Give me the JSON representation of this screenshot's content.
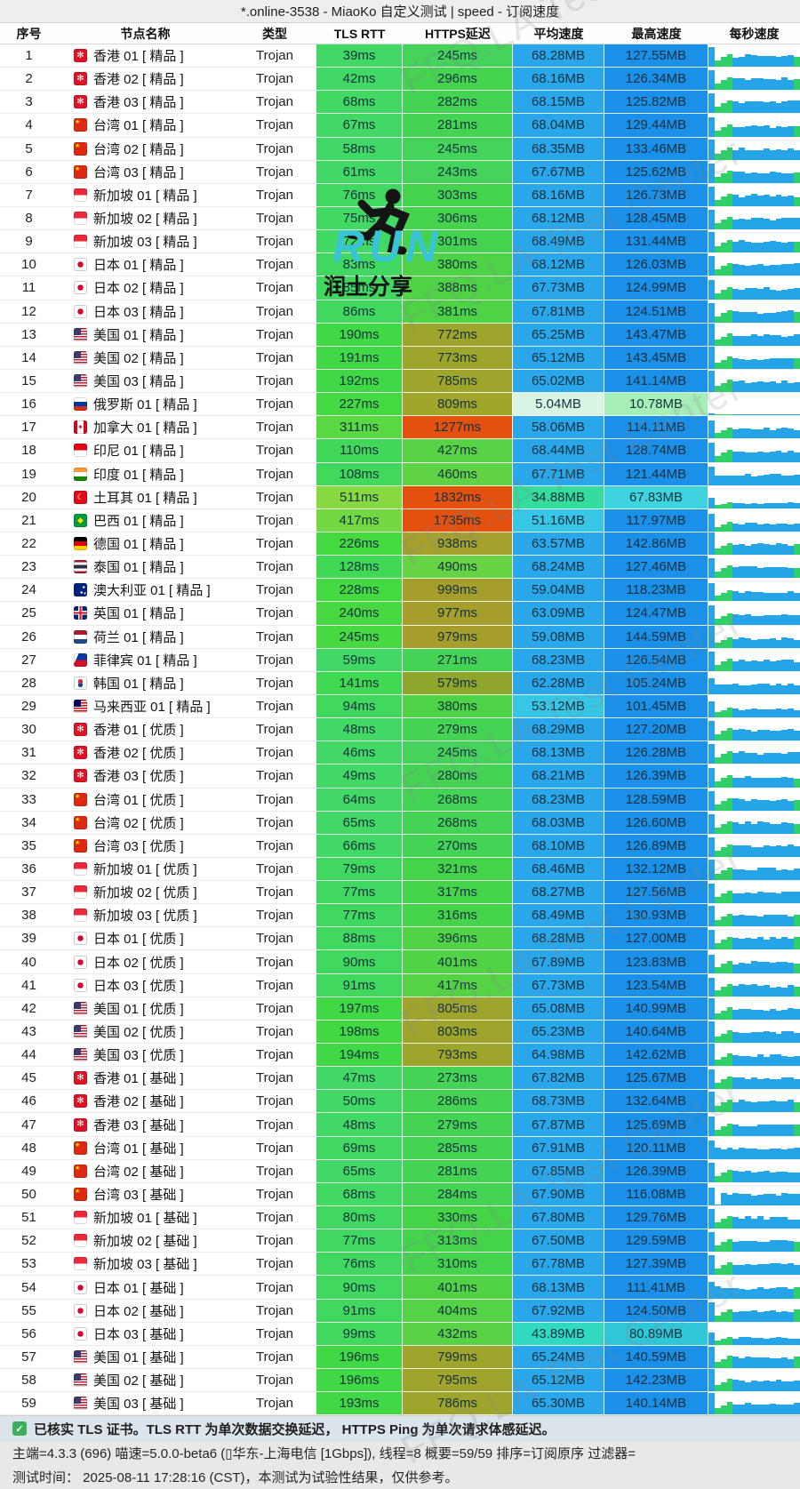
{
  "title": "*.online-3538 - MiaoKo 自定义测试 | speed - 订阅速度",
  "columns": [
    "序号",
    "节点名称",
    "类型",
    "TLS RTT",
    "HTTPS延迟",
    "平均速度",
    "最高速度",
    "每秒速度"
  ],
  "watermark": {
    "diagonal": "FFQ.LA Test Center",
    "run_text": "RUN",
    "run_sub": "润土分享"
  },
  "footer": {
    "line1": "已核实 TLS 证书。TLS RTT 为单次数据交换延迟， HTTPS Ping 为单次请求体感延迟。",
    "line2": "主端=4.3.3 (696) 喵速=5.0.0-beta6 (▯华东-上海电信 [1Gbps]), 线程=8 概要=59/59 排序=订阅原序 过滤器=",
    "line3": "测试时间： 2025-08-11 17:28:16 (CST)，本测试为试验性结果，仅供参考。"
  },
  "colors": {
    "latency_red": "#e4500e",
    "speed_avg_blue": "#2aa7ea",
    "speed_max_blue": "#1b90e8",
    "speed_cyan": "#38c6e6",
    "speed_cyan2": "#2fc7d8",
    "speed_cyan3": "#3fd3e0",
    "speed_teal": "#31d9c0",
    "speed_green": "#34dd9b",
    "speed_pale_mint": "#d8f4e3",
    "speed_pale_green": "#a6efb7",
    "bar_blue": "#25a5e8",
    "bar_green": "#2fd069",
    "check_green": "#3fae5c",
    "run_teal": "#38c3d6"
  },
  "rows": [
    {
      "num": 1,
      "flag": "hk",
      "name": "香港 01 [ 精品 ]",
      "type": "Trojan",
      "tls": "39ms",
      "https": "245ms",
      "avg": "68.28MB",
      "max": "127.55MB"
    },
    {
      "num": 2,
      "flag": "hk",
      "name": "香港 02 [ 精品 ]",
      "type": "Trojan",
      "tls": "42ms",
      "https": "296ms",
      "avg": "68.16MB",
      "max": "126.34MB"
    },
    {
      "num": 3,
      "flag": "hk",
      "name": "香港 03 [ 精品 ]",
      "type": "Trojan",
      "tls": "68ms",
      "https": "282ms",
      "avg": "68.15MB",
      "max": "125.82MB"
    },
    {
      "num": 4,
      "flag": "tw",
      "name": "台湾 01 [ 精品 ]",
      "type": "Trojan",
      "tls": "67ms",
      "https": "281ms",
      "avg": "68.04MB",
      "max": "129.44MB"
    },
    {
      "num": 5,
      "flag": "tw",
      "name": "台湾 02 [ 精品 ]",
      "type": "Trojan",
      "tls": "58ms",
      "https": "245ms",
      "avg": "68.35MB",
      "max": "133.46MB"
    },
    {
      "num": 6,
      "flag": "tw",
      "name": "台湾 03 [ 精品 ]",
      "type": "Trojan",
      "tls": "61ms",
      "https": "243ms",
      "avg": "67.67MB",
      "max": "125.62MB"
    },
    {
      "num": 7,
      "flag": "sg",
      "name": "新加坡 01 [ 精品 ]",
      "type": "Trojan",
      "tls": "76ms",
      "https": "303ms",
      "avg": "68.16MB",
      "max": "126.73MB"
    },
    {
      "num": 8,
      "flag": "sg",
      "name": "新加坡 02 [ 精品 ]",
      "type": "Trojan",
      "tls": "75ms",
      "https": "306ms",
      "avg": "68.12MB",
      "max": "128.45MB"
    },
    {
      "num": 9,
      "flag": "sg",
      "name": "新加坡 03 [ 精品 ]",
      "type": "Trojan",
      "tls": "72ms",
      "https": "301ms",
      "avg": "68.49MB",
      "max": "131.44MB"
    },
    {
      "num": 10,
      "flag": "jp",
      "name": "日本 01 [ 精品 ]",
      "type": "Trojan",
      "tls": "83ms",
      "https": "380ms",
      "avg": "68.12MB",
      "max": "126.03MB"
    },
    {
      "num": 11,
      "flag": "jp",
      "name": "日本 02 [ 精品 ]",
      "type": "Trojan",
      "tls": "85ms",
      "https": "388ms",
      "avg": "67.73MB",
      "max": "124.99MB"
    },
    {
      "num": 12,
      "flag": "jp",
      "name": "日本 03 [ 精品 ]",
      "type": "Trojan",
      "tls": "86ms",
      "https": "381ms",
      "avg": "67.81MB",
      "max": "124.51MB"
    },
    {
      "num": 13,
      "flag": "us",
      "name": "美国 01 [ 精品 ]",
      "type": "Trojan",
      "tls": "190ms",
      "https": "772ms",
      "avg": "65.25MB",
      "max": "143.47MB"
    },
    {
      "num": 14,
      "flag": "us",
      "name": "美国 02 [ 精品 ]",
      "type": "Trojan",
      "tls": "191ms",
      "https": "773ms",
      "avg": "65.12MB",
      "max": "143.45MB"
    },
    {
      "num": 15,
      "flag": "us",
      "name": "美国 03 [ 精品 ]",
      "type": "Trojan",
      "tls": "192ms",
      "https": "785ms",
      "avg": "65.02MB",
      "max": "141.14MB"
    },
    {
      "num": 16,
      "flag": "ru",
      "name": "俄罗斯 01 [ 精品 ]",
      "type": "Trojan",
      "tls": "227ms",
      "https": "809ms",
      "avg": "5.04MB",
      "max": "10.78MB"
    },
    {
      "num": 17,
      "flag": "ca",
      "name": "加拿大 01 [ 精品 ]",
      "type": "Trojan",
      "tls": "311ms",
      "https": "1277ms",
      "avg": "58.06MB",
      "max": "114.11MB"
    },
    {
      "num": 18,
      "flag": "id",
      "name": "印尼 01 [ 精品 ]",
      "type": "Trojan",
      "tls": "110ms",
      "https": "427ms",
      "avg": "68.44MB",
      "max": "128.74MB"
    },
    {
      "num": 19,
      "flag": "in",
      "name": "印度 01 [ 精品 ]",
      "type": "Trojan",
      "tls": "108ms",
      "https": "460ms",
      "avg": "67.71MB",
      "max": "121.44MB"
    },
    {
      "num": 20,
      "flag": "tr",
      "name": "土耳其 01 [ 精品 ]",
      "type": "Trojan",
      "tls": "511ms",
      "https": "1832ms",
      "avg": "34.88MB",
      "max": "67.83MB"
    },
    {
      "num": 21,
      "flag": "br",
      "name": "巴西 01 [ 精品 ]",
      "type": "Trojan",
      "tls": "417ms",
      "https": "1735ms",
      "avg": "51.16MB",
      "max": "117.97MB"
    },
    {
      "num": 22,
      "flag": "de",
      "name": "德国 01 [ 精品 ]",
      "type": "Trojan",
      "tls": "226ms",
      "https": "938ms",
      "avg": "63.57MB",
      "max": "142.86MB"
    },
    {
      "num": 23,
      "flag": "th",
      "name": "泰国 01 [ 精品 ]",
      "type": "Trojan",
      "tls": "128ms",
      "https": "490ms",
      "avg": "68.24MB",
      "max": "127.46MB"
    },
    {
      "num": 24,
      "flag": "au",
      "name": "澳大利亚 01 [ 精品 ]",
      "type": "Trojan",
      "tls": "228ms",
      "https": "999ms",
      "avg": "59.04MB",
      "max": "118.23MB"
    },
    {
      "num": 25,
      "flag": "gb",
      "name": "英国 01 [ 精品 ]",
      "type": "Trojan",
      "tls": "240ms",
      "https": "977ms",
      "avg": "63.09MB",
      "max": "124.47MB"
    },
    {
      "num": 26,
      "flag": "nl",
      "name": "荷兰 01 [ 精品 ]",
      "type": "Trojan",
      "tls": "245ms",
      "https": "979ms",
      "avg": "59.08MB",
      "max": "144.59MB"
    },
    {
      "num": 27,
      "flag": "ph",
      "name": "菲律宾 01 [ 精品 ]",
      "type": "Trojan",
      "tls": "59ms",
      "https": "271ms",
      "avg": "68.23MB",
      "max": "126.54MB"
    },
    {
      "num": 28,
      "flag": "kr",
      "name": "韩国 01 [ 精品 ]",
      "type": "Trojan",
      "tls": "141ms",
      "https": "579ms",
      "avg": "62.28MB",
      "max": "105.24MB"
    },
    {
      "num": 29,
      "flag": "my",
      "name": "马来西亚 01 [ 精品 ]",
      "type": "Trojan",
      "tls": "94ms",
      "https": "380ms",
      "avg": "53.12MB",
      "max": "101.45MB"
    },
    {
      "num": 30,
      "flag": "hk",
      "name": "香港 01 [ 优质 ]",
      "type": "Trojan",
      "tls": "48ms",
      "https": "279ms",
      "avg": "68.29MB",
      "max": "127.20MB"
    },
    {
      "num": 31,
      "flag": "hk",
      "name": "香港 02 [ 优质 ]",
      "type": "Trojan",
      "tls": "46ms",
      "https": "245ms",
      "avg": "68.13MB",
      "max": "126.28MB"
    },
    {
      "num": 32,
      "flag": "hk",
      "name": "香港 03 [ 优质 ]",
      "type": "Trojan",
      "tls": "49ms",
      "https": "280ms",
      "avg": "68.21MB",
      "max": "126.39MB"
    },
    {
      "num": 33,
      "flag": "tw",
      "name": "台湾 01 [ 优质 ]",
      "type": "Trojan",
      "tls": "64ms",
      "https": "268ms",
      "avg": "68.23MB",
      "max": "128.59MB"
    },
    {
      "num": 34,
      "flag": "tw",
      "name": "台湾 02 [ 优质 ]",
      "type": "Trojan",
      "tls": "65ms",
      "https": "268ms",
      "avg": "68.03MB",
      "max": "126.60MB"
    },
    {
      "num": 35,
      "flag": "tw",
      "name": "台湾 03 [ 优质 ]",
      "type": "Trojan",
      "tls": "66ms",
      "https": "270ms",
      "avg": "68.10MB",
      "max": "126.89MB"
    },
    {
      "num": 36,
      "flag": "sg",
      "name": "新加坡 01 [ 优质 ]",
      "type": "Trojan",
      "tls": "79ms",
      "https": "321ms",
      "avg": "68.46MB",
      "max": "132.12MB"
    },
    {
      "num": 37,
      "flag": "sg",
      "name": "新加坡 02 [ 优质 ]",
      "type": "Trojan",
      "tls": "77ms",
      "https": "317ms",
      "avg": "68.27MB",
      "max": "127.56MB"
    },
    {
      "num": 38,
      "flag": "sg",
      "name": "新加坡 03 [ 优质 ]",
      "type": "Trojan",
      "tls": "77ms",
      "https": "316ms",
      "avg": "68.49MB",
      "max": "130.93MB"
    },
    {
      "num": 39,
      "flag": "jp",
      "name": "日本 01 [ 优质 ]",
      "type": "Trojan",
      "tls": "88ms",
      "https": "396ms",
      "avg": "68.28MB",
      "max": "127.00MB"
    },
    {
      "num": 40,
      "flag": "jp",
      "name": "日本 02 [ 优质 ]",
      "type": "Trojan",
      "tls": "90ms",
      "https": "401ms",
      "avg": "67.89MB",
      "max": "123.83MB"
    },
    {
      "num": 41,
      "flag": "jp",
      "name": "日本 03 [ 优质 ]",
      "type": "Trojan",
      "tls": "91ms",
      "https": "417ms",
      "avg": "67.73MB",
      "max": "123.54MB"
    },
    {
      "num": 42,
      "flag": "us",
      "name": "美国 01 [ 优质 ]",
      "type": "Trojan",
      "tls": "197ms",
      "https": "805ms",
      "avg": "65.08MB",
      "max": "140.99MB"
    },
    {
      "num": 43,
      "flag": "us",
      "name": "美国 02 [ 优质 ]",
      "type": "Trojan",
      "tls": "198ms",
      "https": "803ms",
      "avg": "65.23MB",
      "max": "140.64MB"
    },
    {
      "num": 44,
      "flag": "us",
      "name": "美国 03 [ 优质 ]",
      "type": "Trojan",
      "tls": "194ms",
      "https": "793ms",
      "avg": "64.98MB",
      "max": "142.62MB"
    },
    {
      "num": 45,
      "flag": "hk",
      "name": "香港 01 [ 基础 ]",
      "type": "Trojan",
      "tls": "47ms",
      "https": "273ms",
      "avg": "67.82MB",
      "max": "125.67MB"
    },
    {
      "num": 46,
      "flag": "hk",
      "name": "香港 02 [ 基础 ]",
      "type": "Trojan",
      "tls": "50ms",
      "https": "286ms",
      "avg": "68.73MB",
      "max": "132.64MB"
    },
    {
      "num": 47,
      "flag": "hk",
      "name": "香港 03 [ 基础 ]",
      "type": "Trojan",
      "tls": "48ms",
      "https": "279ms",
      "avg": "67.87MB",
      "max": "125.69MB"
    },
    {
      "num": 48,
      "flag": "tw",
      "name": "台湾 01 [ 基础 ]",
      "type": "Trojan",
      "tls": "69ms",
      "https": "285ms",
      "avg": "67.91MB",
      "max": "120.11MB"
    },
    {
      "num": 49,
      "flag": "tw",
      "name": "台湾 02 [ 基础 ]",
      "type": "Trojan",
      "tls": "65ms",
      "https": "281ms",
      "avg": "67.85MB",
      "max": "126.39MB"
    },
    {
      "num": 50,
      "flag": "tw",
      "name": "台湾 03 [ 基础 ]",
      "type": "Trojan",
      "tls": "68ms",
      "https": "284ms",
      "avg": "67.90MB",
      "max": "116.08MB"
    },
    {
      "num": 51,
      "flag": "sg",
      "name": "新加坡 01 [ 基础 ]",
      "type": "Trojan",
      "tls": "80ms",
      "https": "330ms",
      "avg": "67.80MB",
      "max": "129.76MB"
    },
    {
      "num": 52,
      "flag": "sg",
      "name": "新加坡 02 [ 基础 ]",
      "type": "Trojan",
      "tls": "77ms",
      "https": "313ms",
      "avg": "67.50MB",
      "max": "129.59MB"
    },
    {
      "num": 53,
      "flag": "sg",
      "name": "新加坡 03 [ 基础 ]",
      "type": "Trojan",
      "tls": "76ms",
      "https": "310ms",
      "avg": "67.78MB",
      "max": "127.39MB"
    },
    {
      "num": 54,
      "flag": "jp",
      "name": "日本 01 [ 基础 ]",
      "type": "Trojan",
      "tls": "90ms",
      "https": "401ms",
      "avg": "68.13MB",
      "max": "111.41MB"
    },
    {
      "num": 55,
      "flag": "jp",
      "name": "日本 02 [ 基础 ]",
      "type": "Trojan",
      "tls": "91ms",
      "https": "404ms",
      "avg": "67.92MB",
      "max": "124.50MB"
    },
    {
      "num": 56,
      "flag": "jp",
      "name": "日本 03 [ 基础 ]",
      "type": "Trojan",
      "tls": "99ms",
      "https": "432ms",
      "avg": "43.89MB",
      "max": "80.89MB"
    },
    {
      "num": 57,
      "flag": "us",
      "name": "美国 01 [ 基础 ]",
      "type": "Trojan",
      "tls": "196ms",
      "https": "799ms",
      "avg": "65.24MB",
      "max": "140.59MB"
    },
    {
      "num": 58,
      "flag": "us",
      "name": "美国 02 [ 基础 ]",
      "type": "Trojan",
      "tls": "196ms",
      "https": "795ms",
      "avg": "65.12MB",
      "max": "142.23MB"
    },
    {
      "num": 59,
      "flag": "us",
      "name": "美国 03 [ 基础 ]",
      "type": "Trojan",
      "tls": "193ms",
      "https": "786ms",
      "avg": "65.30MB",
      "max": "140.14MB"
    }
  ]
}
